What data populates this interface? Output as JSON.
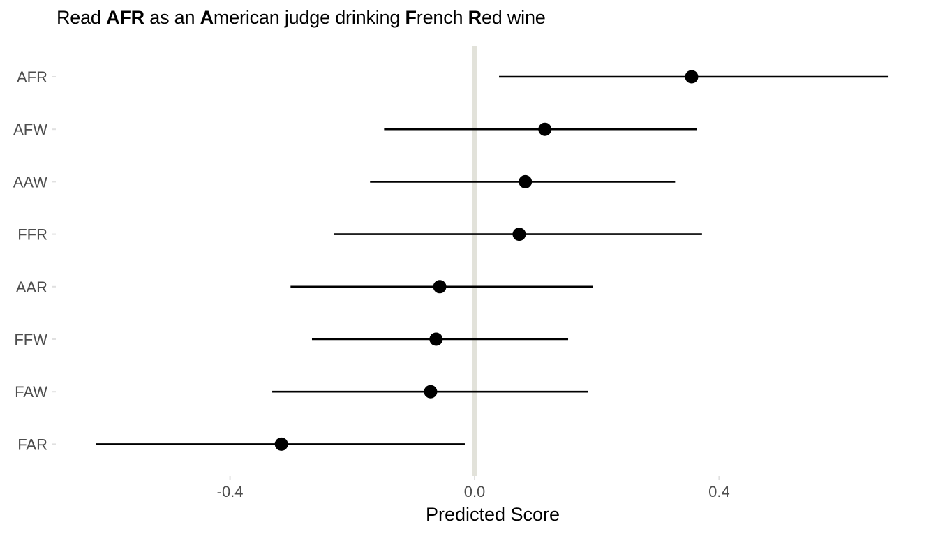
{
  "title": {
    "parts": [
      {
        "text": "Read ",
        "bold": false
      },
      {
        "text": "AFR",
        "bold": true
      },
      {
        "text": " as an ",
        "bold": false
      },
      {
        "text": "A",
        "bold": true
      },
      {
        "text": "merican judge drinking ",
        "bold": false
      },
      {
        "text": "F",
        "bold": true
      },
      {
        "text": "rench ",
        "bold": false
      },
      {
        "text": "R",
        "bold": true
      },
      {
        "text": "ed wine",
        "bold": false
      }
    ]
  },
  "chart_data": {
    "type": "scatter",
    "subtype": "point-range",
    "title": "Read AFR as an American judge drinking French Red wine",
    "xlabel": "Predicted Score",
    "ylabel": "",
    "xlim": [
      -0.4,
      0.72
    ],
    "x_ticks": [
      -0.4,
      0.0,
      0.4
    ],
    "x_tick_labels": [
      "-0.4",
      "0.0",
      "0.4"
    ],
    "reference_line": {
      "x": 0.0,
      "color": "#e2e2da"
    },
    "categories": [
      "AFR",
      "AFW",
      "AAW",
      "FFR",
      "AAR",
      "FFW",
      "FAW",
      "FAR"
    ],
    "estimates": [
      0.355,
      0.115,
      0.083,
      0.073,
      -0.057,
      -0.063,
      -0.072,
      -0.316
    ],
    "lower": [
      0.04,
      -0.148,
      -0.171,
      -0.23,
      -0.301,
      -0.266,
      -0.331,
      -0.619
    ],
    "upper": [
      0.677,
      0.364,
      0.328,
      0.372,
      0.194,
      0.153,
      0.186,
      -0.016
    ],
    "grid": false,
    "point_color": "#000000",
    "line_color": "#000000"
  }
}
